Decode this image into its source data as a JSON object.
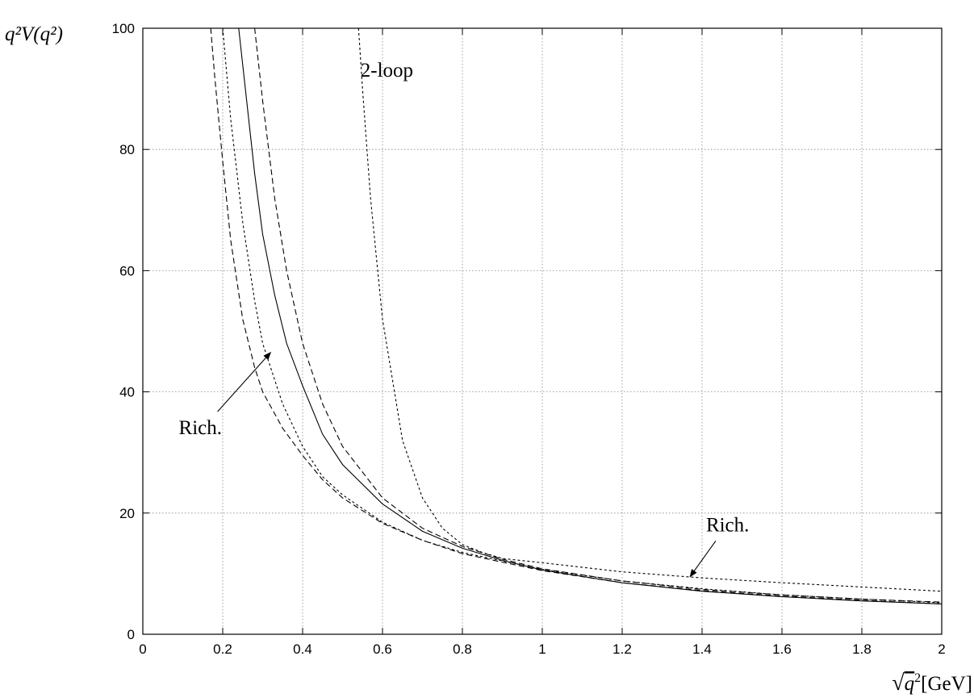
{
  "chart_data": {
    "type": "line",
    "xlabel_pre": "√",
    "xlabel_var": "q",
    "xlabel_exp": "2",
    "xlabel_unit": "[GeV]",
    "ylabel": "q²V(q²)",
    "xlim": [
      0,
      2
    ],
    "ylim": [
      0,
      100
    ],
    "x_ticks": [
      "0",
      "0.2",
      "0.4",
      "0.6",
      "0.8",
      "1",
      "1.2",
      "1.4",
      "1.6",
      "1.8",
      "2"
    ],
    "y_ticks": [
      "0",
      "20",
      "40",
      "60",
      "80",
      "100"
    ],
    "grid": true,
    "series": [
      {
        "name": "2-loop",
        "style": "short-dash",
        "x": [
          0.54,
          0.55,
          0.57,
          0.6,
          0.65,
          0.7,
          0.75,
          0.8,
          0.85,
          0.9,
          1.0,
          1.2,
          1.4,
          1.6,
          1.8,
          2.0
        ],
        "y": [
          100,
          90,
          72,
          52,
          32,
          22.5,
          17.5,
          14.8,
          13.5,
          12.5,
          11.8,
          10.3,
          9.3,
          8.5,
          7.8,
          7.1
        ]
      },
      {
        "name": "",
        "style": "short-dash",
        "x": [
          0.2,
          0.22,
          0.25,
          0.28,
          0.3,
          0.35,
          0.4,
          0.45,
          0.5,
          0.6,
          0.7,
          0.8,
          1.0,
          1.2,
          1.4,
          1.6,
          1.8,
          2.0
        ],
        "y": [
          100,
          85,
          68,
          55,
          48,
          38,
          31,
          26,
          23,
          18.5,
          15.5,
          13.5,
          10.7,
          8.8,
          7.5,
          6.5,
          5.8,
          5.2
        ]
      },
      {
        "name": "",
        "style": "long-dash",
        "x": [
          0.17,
          0.18,
          0.2,
          0.22,
          0.25,
          0.28,
          0.3,
          0.35,
          0.4,
          0.45,
          0.5,
          0.6,
          0.7,
          0.8,
          1.0,
          1.2,
          1.4,
          1.6,
          1.8,
          2.0
        ],
        "y": [
          100,
          92,
          78,
          65,
          52,
          44,
          40,
          34,
          29.5,
          25.5,
          22.5,
          18.3,
          15.5,
          13.3,
          10.5,
          8.5,
          7.2,
          6.3,
          5.6,
          5.0
        ]
      },
      {
        "name": "",
        "style": "solid",
        "x": [
          0.24,
          0.26,
          0.28,
          0.3,
          0.33,
          0.36,
          0.4,
          0.45,
          0.5,
          0.6,
          0.7,
          0.8,
          0.9,
          1.0,
          1.2,
          1.4,
          1.6,
          1.8,
          2.0
        ],
        "y": [
          100,
          88,
          76,
          66,
          56,
          48,
          41,
          33,
          28,
          21.5,
          17,
          14.2,
          12.2,
          10.6,
          8.5,
          7.1,
          6.2,
          5.5,
          5.0
        ]
      },
      {
        "name": "",
        "style": "long-dash",
        "x": [
          0.28,
          0.3,
          0.33,
          0.36,
          0.4,
          0.45,
          0.5,
          0.6,
          0.7,
          0.8,
          0.9,
          1.0,
          1.2,
          1.4,
          1.6,
          1.8,
          2.0
        ],
        "y": [
          100,
          88,
          72,
          60,
          48,
          38,
          31,
          22.5,
          17.5,
          14.5,
          12.4,
          10.8,
          8.8,
          7.4,
          6.5,
          5.8,
          5.3
        ]
      }
    ],
    "annotations": [
      {
        "text": "2-loop",
        "x": 0.545,
        "y": 92
      },
      {
        "text": "Rich.",
        "x": 0.09,
        "y": 33,
        "arrow_to": [
          0.32,
          46.5
        ]
      },
      {
        "text": "Rich.",
        "x": 1.41,
        "y": 17,
        "arrow_to": [
          1.37,
          9.5
        ]
      }
    ]
  }
}
